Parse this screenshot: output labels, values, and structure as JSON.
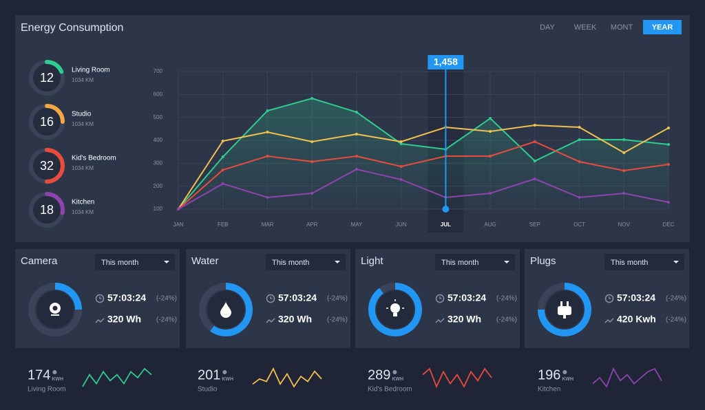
{
  "header": {
    "title": "Energy Consumption",
    "tabs": [
      {
        "label": "DAY",
        "active": false
      },
      {
        "label": "WEEK",
        "active": false
      },
      {
        "label": "MONT",
        "active": false
      },
      {
        "label": "YEAR",
        "active": true
      }
    ]
  },
  "rooms": [
    {
      "value": 12,
      "name": "Living Room",
      "sub": "1034 KM",
      "color": "#2ecc8f"
    },
    {
      "value": 16,
      "name": "Studio",
      "sub": "1034 KM",
      "color": "#f5a742"
    },
    {
      "value": 32,
      "name": "Kid's Bedroom",
      "sub": "1034 KM",
      "color": "#e74c3c"
    },
    {
      "value": 18,
      "name": "Kitchen",
      "sub": "1034 KM",
      "color": "#8e44ad"
    }
  ],
  "chart_data": {
    "type": "line",
    "categories": [
      "JAN",
      "FEB",
      "MAR",
      "APR",
      "MAY",
      "JUN",
      "JUL",
      "AUG",
      "SEP",
      "OCT",
      "NOV",
      "DEC"
    ],
    "series": [
      {
        "name": "Living Room",
        "color": "#2ecc8f",
        "values": [
          100,
          328,
          529,
          583,
          523,
          385,
          361,
          496,
          310,
          403,
          403,
          382
        ]
      },
      {
        "name": "Studio",
        "color": "#f2c14e",
        "values": [
          100,
          397,
          436,
          394,
          427,
          394,
          457,
          439,
          466,
          457,
          346,
          454
        ]
      },
      {
        "name": "Kid's Bedroom",
        "color": "#e74c3c",
        "values": [
          100,
          271,
          331,
          307,
          331,
          286,
          331,
          331,
          394,
          307,
          268,
          295
        ]
      },
      {
        "name": "Kitchen",
        "color": "#8e44ad",
        "values": [
          100,
          211,
          151,
          169,
          274,
          229,
          151,
          169,
          232,
          151,
          169,
          130
        ]
      }
    ],
    "ylim": [
      100,
      700
    ],
    "yticks": [
      100,
      200,
      300,
      400,
      500,
      600,
      700
    ],
    "grid": true,
    "annotation": {
      "x": "JUL",
      "label": "1,458"
    }
  },
  "cards": [
    {
      "title": "Camera",
      "dropdown": "This month",
      "progress": 25,
      "time": "57:03:24",
      "time_change": "(-24%)",
      "energy": "320 Wh",
      "energy_change": "(-24%)",
      "icon": "camera"
    },
    {
      "title": "Water",
      "dropdown": "This month",
      "progress": 60,
      "time": "57:03:24",
      "time_change": "(-24%)",
      "energy": "320 Wh",
      "energy_change": "(-24%)",
      "icon": "drop"
    },
    {
      "title": "Light",
      "dropdown": "This month",
      "progress": 90,
      "time": "57:03:24",
      "time_change": "(-24%)",
      "energy": "320 Wh",
      "energy_change": "(-24%)",
      "icon": "bulb"
    },
    {
      "title": "Plugs",
      "dropdown": "This month",
      "progress": 75,
      "time": "57:03:24",
      "time_change": "(-24%)",
      "energy": "420 Kwh",
      "energy_change": "(-24%)",
      "icon": "plug"
    }
  ],
  "stats": [
    {
      "value": 174,
      "unit": "KWH",
      "name": "Living Room",
      "color": "#2ecc8f",
      "spark": [
        2,
        6,
        3,
        7,
        4,
        6,
        3,
        7,
        5,
        8,
        6
      ]
    },
    {
      "value": 201,
      "unit": "KWH",
      "name": "Studio",
      "color": "#f2c14e",
      "spark": [
        3,
        5,
        4,
        9,
        3,
        7,
        2,
        6,
        4,
        8,
        5
      ]
    },
    {
      "value": 289,
      "unit": "KWH",
      "name": "Kid's Bedroom",
      "color": "#e74c3c",
      "spark": [
        6,
        8,
        2,
        7,
        3,
        6,
        2,
        7,
        4,
        8,
        5
      ]
    },
    {
      "value": 196,
      "unit": "KWH",
      "name": "Kitchen",
      "color": "#8e44ad",
      "spark": [
        3,
        5,
        2,
        8,
        4,
        6,
        3,
        5,
        7,
        8,
        4
      ]
    }
  ]
}
